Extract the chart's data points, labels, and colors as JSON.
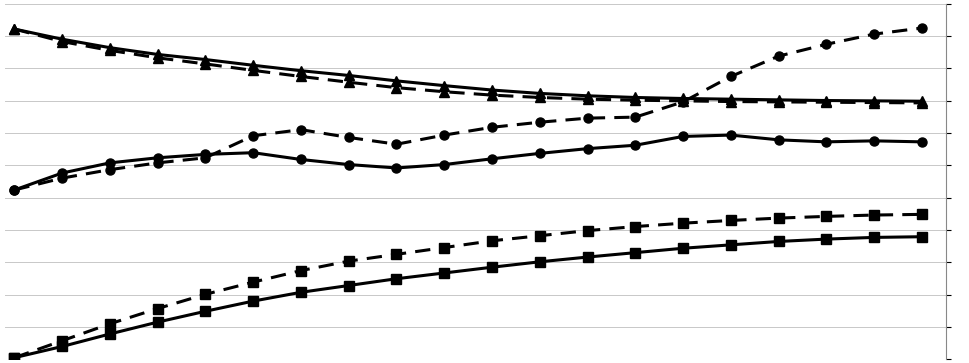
{
  "x": [
    0,
    1,
    2,
    3,
    4,
    5,
    6,
    7,
    8,
    9,
    10,
    11,
    12,
    13,
    14,
    15,
    16,
    17,
    18,
    19
  ],
  "triangle_solid": [
    9.75,
    9.45,
    9.2,
    9.0,
    8.85,
    8.68,
    8.52,
    8.38,
    8.22,
    8.08,
    7.95,
    7.85,
    7.78,
    7.73,
    7.7,
    7.68,
    7.66,
    7.64,
    7.63,
    7.62
  ],
  "triangle_dashed": [
    9.75,
    9.38,
    9.12,
    8.9,
    8.72,
    8.53,
    8.35,
    8.18,
    8.02,
    7.9,
    7.8,
    7.73,
    7.68,
    7.65,
    7.63,
    7.61,
    7.6,
    7.59,
    7.58,
    7.57
  ],
  "circle_solid": [
    5.0,
    5.5,
    5.8,
    5.95,
    6.05,
    6.1,
    5.9,
    5.75,
    5.65,
    5.75,
    5.92,
    6.08,
    6.22,
    6.32,
    6.58,
    6.62,
    6.48,
    6.42,
    6.45,
    6.42
  ],
  "circle_dashed": [
    5.0,
    5.35,
    5.6,
    5.8,
    5.95,
    6.6,
    6.78,
    6.55,
    6.35,
    6.62,
    6.85,
    7.0,
    7.12,
    7.15,
    7.6,
    8.35,
    8.95,
    9.3,
    9.6,
    9.78
  ],
  "square_solid": [
    0.05,
    0.38,
    0.75,
    1.1,
    1.42,
    1.72,
    1.98,
    2.18,
    2.38,
    2.55,
    2.72,
    2.88,
    3.02,
    3.15,
    3.28,
    3.38,
    3.48,
    3.55,
    3.6,
    3.62
  ],
  "square_dashed": [
    0.05,
    0.55,
    1.05,
    1.5,
    1.92,
    2.28,
    2.62,
    2.9,
    3.1,
    3.3,
    3.5,
    3.65,
    3.8,
    3.92,
    4.02,
    4.1,
    4.17,
    4.22,
    4.26,
    4.28
  ],
  "ylim": [
    0,
    10.5
  ],
  "xlim": [
    -0.2,
    19.5
  ],
  "bg_color": "#ffffff",
  "line_color": "#000000",
  "grid_color": "#c8c8c8",
  "grid_linewidth": 0.7,
  "num_gridlines": 11,
  "figsize": [
    9.7,
    3.63
  ],
  "dpi": 100,
  "lw": 2.2,
  "ms": 6.5
}
